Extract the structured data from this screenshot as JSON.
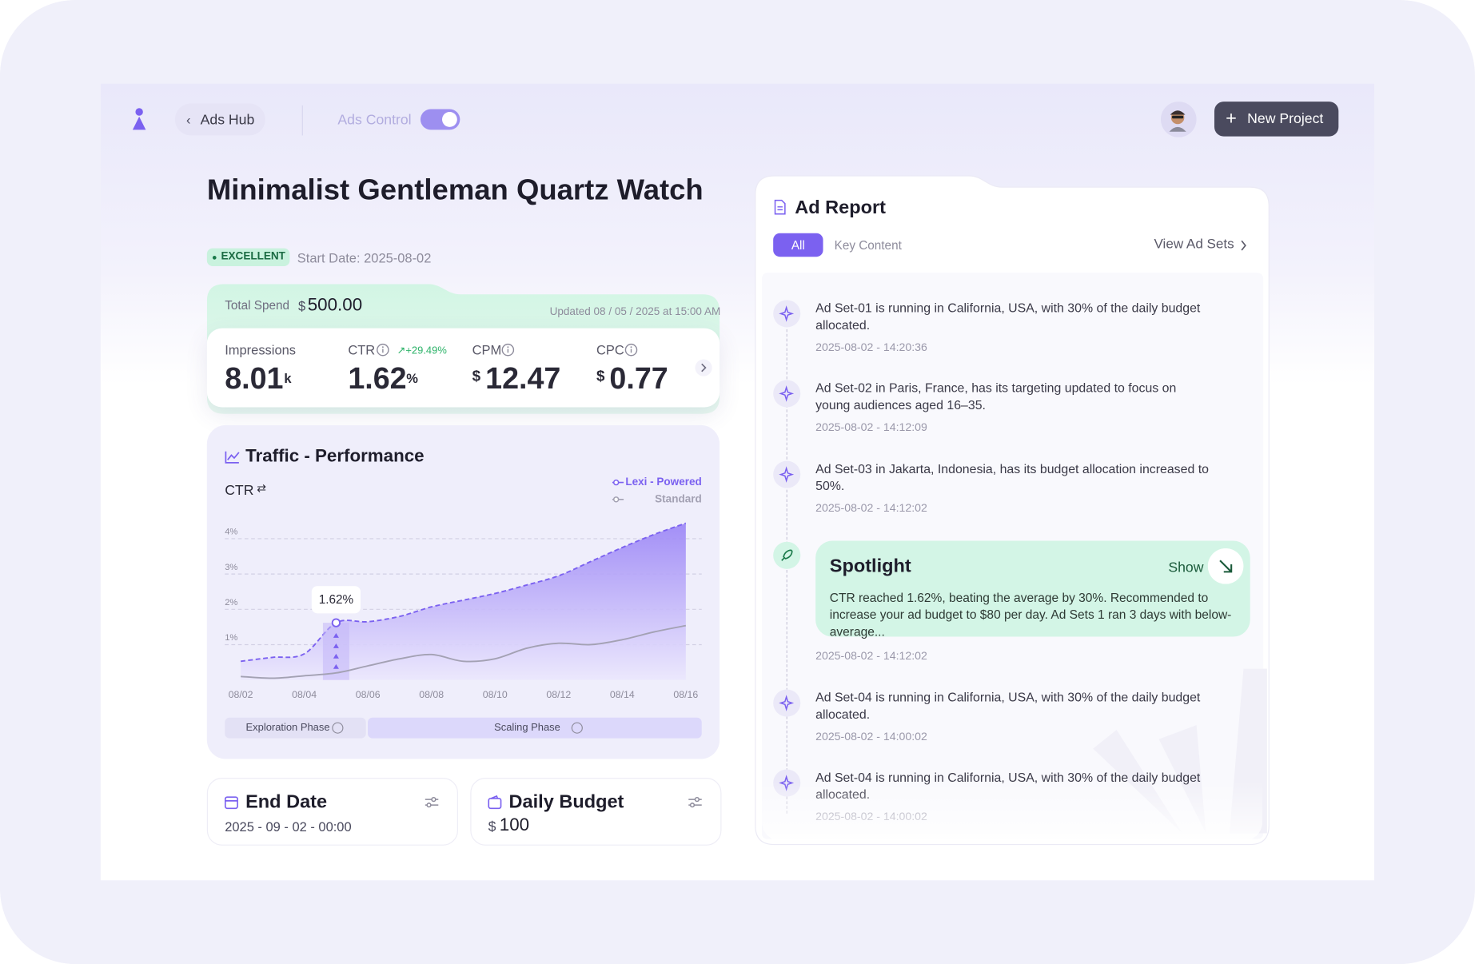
{
  "header": {
    "back": "Ads Hub",
    "toggle_label": "Ads Control",
    "button": "New Project"
  },
  "product": {
    "title": "Minimalist Gentleman Quartz Watch",
    "badge": "EXCELLENT",
    "start_date": "Start Date: 2025-08-02"
  },
  "spend": {
    "label": "Total Spend",
    "currency": "$",
    "amount": "500.00",
    "updated": "Updated 08 / 05 / 2025 at 15:00 AM"
  },
  "metrics": [
    {
      "label": "Impressions",
      "value": "8.01",
      "unit": "k"
    },
    {
      "label": "CTR",
      "value": "1.62",
      "unit": "%",
      "change": "+29.49%"
    },
    {
      "label": "CPM",
      "prefix": "$",
      "value": "12.47"
    },
    {
      "label": "CPC",
      "prefix": "$",
      "value": "0.77"
    }
  ],
  "chart_data": {
    "type": "line",
    "title": "Traffic - Performance",
    "y_label": "CTR",
    "categories": [
      "08/02",
      null,
      "08/04",
      null,
      "08/06",
      null,
      "08/08",
      null,
      "08/10",
      null,
      "08/12",
      null,
      "08/14",
      null,
      "08/16"
    ],
    "series": [
      {
        "name": "Lexi - Powered",
        "color": "#7b61f0",
        "area": true,
        "dashed": true,
        "values": [
          0.53,
          0.64,
          0.74,
          1.62,
          1.65,
          1.8,
          2.07,
          2.26,
          2.45,
          2.69,
          2.95,
          3.35,
          3.75,
          4.12,
          4.44
        ],
        "value_labels": [
          null,
          null,
          null,
          "1.62%",
          null,
          null,
          null,
          null,
          null,
          null,
          null,
          null,
          null,
          null,
          null
        ]
      },
      {
        "name": "Standard",
        "color": "#a3a1b3",
        "values": [
          0.1,
          0.05,
          0.12,
          0.2,
          0.4,
          0.6,
          0.72,
          0.53,
          0.6,
          0.9,
          1.04,
          1.0,
          1.14,
          1.36,
          1.54
        ]
      }
    ],
    "ylim": [
      0,
      4.5
    ],
    "yticks": [
      {
        "value": 1,
        "label": "1%"
      },
      {
        "value": 2,
        "label": "2%"
      },
      {
        "value": 3,
        "label": "3%"
      },
      {
        "value": 4,
        "label": "4%"
      }
    ],
    "grid": true,
    "legend": "top-right",
    "phases": [
      "Exploration Phase",
      "Scaling Phase"
    ]
  },
  "end_date": {
    "title": "End Date",
    "value": "2025 - 09 - 02 - 00:00"
  },
  "daily_budget": {
    "title": "Daily Budget",
    "currency": "$",
    "value": "100"
  },
  "ad_report": {
    "title": "Ad Report",
    "tabs": [
      "All",
      "Key Content"
    ],
    "link": "View Ad Sets",
    "items": [
      {
        "text": "Ad Set-01 is running in California, USA, with 30% of the daily budget allocated.",
        "time": "2025-08-02 - 14:20:36"
      },
      {
        "text": "Ad Set-02 in Paris, France, has its targeting updated to focus on young audiences aged 16–35.",
        "time": "2025-08-02 - 14:12:09"
      },
      {
        "text": "Ad Set-03 in Jakarta, Indonesia, has its budget allocation increased to 50%.",
        "time": "2025-08-02 - 14:12:02"
      },
      {
        "text": "Ad Set-04 is running in California, USA, with 30% of the daily budget allocated.",
        "time": "2025-08-02 - 14:00:02"
      },
      {
        "text": "Ad Set-04 is running in California, USA, with 30% of the daily budget allocated.",
        "time": "2025-08-02 - 14:00:02"
      }
    ],
    "spotlight": {
      "title": "Spotlight",
      "action": "Show",
      "text": "CTR reached 1.62%, beating the average by 30%. Recommended to increase your ad budget to $80 per day. Ad Sets 1 ran 3 days with below-average...",
      "time": "2025-08-02 - 14:12:02"
    }
  }
}
